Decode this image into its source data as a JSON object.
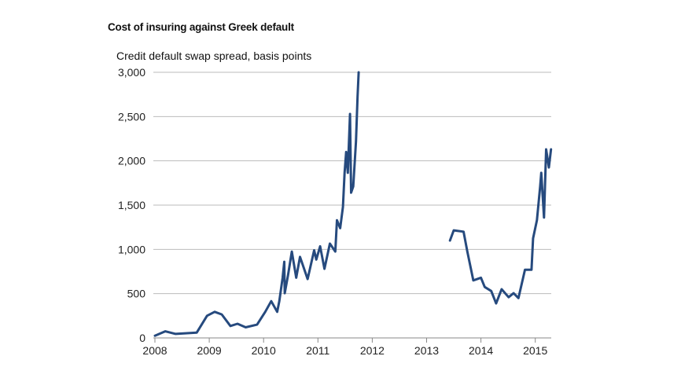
{
  "chart_data": {
    "type": "line",
    "title": "Cost of insuring against Greek default",
    "ylabel": "Credit default swap spread, basis points",
    "xlabel": "",
    "ylim": [
      0,
      3000
    ],
    "xlim": [
      2008,
      2015.3
    ],
    "grid": true,
    "line_color": "#264a7e",
    "yticks": [
      0,
      500,
      1000,
      1500,
      2000,
      2500,
      3000
    ],
    "ytick_labels": [
      "0",
      "500",
      "1,000",
      "1,500",
      "2,000",
      "2,500",
      "3,000"
    ],
    "xticks": [
      2008,
      2009,
      2010,
      2011,
      2012,
      2013,
      2014,
      2015
    ],
    "xtick_labels": [
      "2008",
      "2009",
      "2010",
      "2011",
      "2012",
      "2013",
      "2014",
      "2015"
    ],
    "series": [
      {
        "segments": [
          [
            [
              2008.0,
              25
            ],
            [
              2008.19,
              75
            ],
            [
              2008.38,
              45
            ],
            [
              2008.77,
              60
            ],
            [
              2008.96,
              250
            ],
            [
              2009.1,
              295
            ],
            [
              2009.23,
              265
            ],
            [
              2009.39,
              135
            ],
            [
              2009.52,
              160
            ],
            [
              2009.67,
              120
            ],
            [
              2009.88,
              150
            ],
            [
              2010.03,
              295
            ],
            [
              2010.14,
              415
            ],
            [
              2010.25,
              295
            ],
            [
              2010.29,
              415
            ],
            [
              2010.35,
              680
            ],
            [
              2010.38,
              860
            ],
            [
              2010.39,
              505
            ],
            [
              2010.45,
              710
            ],
            [
              2010.52,
              975
            ],
            [
              2010.6,
              680
            ],
            [
              2010.67,
              915
            ],
            [
              2010.81,
              665
            ],
            [
              2010.93,
              990
            ],
            [
              2010.97,
              885
            ],
            [
              2011.04,
              1035
            ],
            [
              2011.12,
              780
            ],
            [
              2011.22,
              1065
            ],
            [
              2011.32,
              975
            ],
            [
              2011.35,
              1330
            ],
            [
              2011.41,
              1240
            ],
            [
              2011.46,
              1480
            ],
            [
              2011.49,
              1865
            ],
            [
              2011.52,
              2100
            ],
            [
              2011.55,
              1865
            ],
            [
              2011.59,
              2530
            ],
            [
              2011.61,
              1640
            ],
            [
              2011.65,
              1710
            ],
            [
              2011.7,
              2220
            ],
            [
              2011.73,
              2725
            ],
            [
              2011.75,
              3000
            ]
          ],
          [
            [
              2013.43,
              1100
            ],
            [
              2013.5,
              1215
            ],
            [
              2013.68,
              1200
            ],
            [
              2013.75,
              975
            ],
            [
              2013.86,
              650
            ],
            [
              2014.0,
              680
            ],
            [
              2014.07,
              575
            ],
            [
              2014.19,
              530
            ],
            [
              2014.28,
              390
            ],
            [
              2014.38,
              550
            ],
            [
              2014.51,
              460
            ],
            [
              2014.6,
              505
            ],
            [
              2014.69,
              450
            ],
            [
              2014.81,
              770
            ],
            [
              2014.93,
              770
            ],
            [
              2014.96,
              1125
            ],
            [
              2015.03,
              1330
            ],
            [
              2015.09,
              1710
            ],
            [
              2015.11,
              1865
            ],
            [
              2015.16,
              1360
            ],
            [
              2015.2,
              2130
            ],
            [
              2015.25,
              1925
            ],
            [
              2015.29,
              2130
            ]
          ]
        ]
      }
    ]
  }
}
